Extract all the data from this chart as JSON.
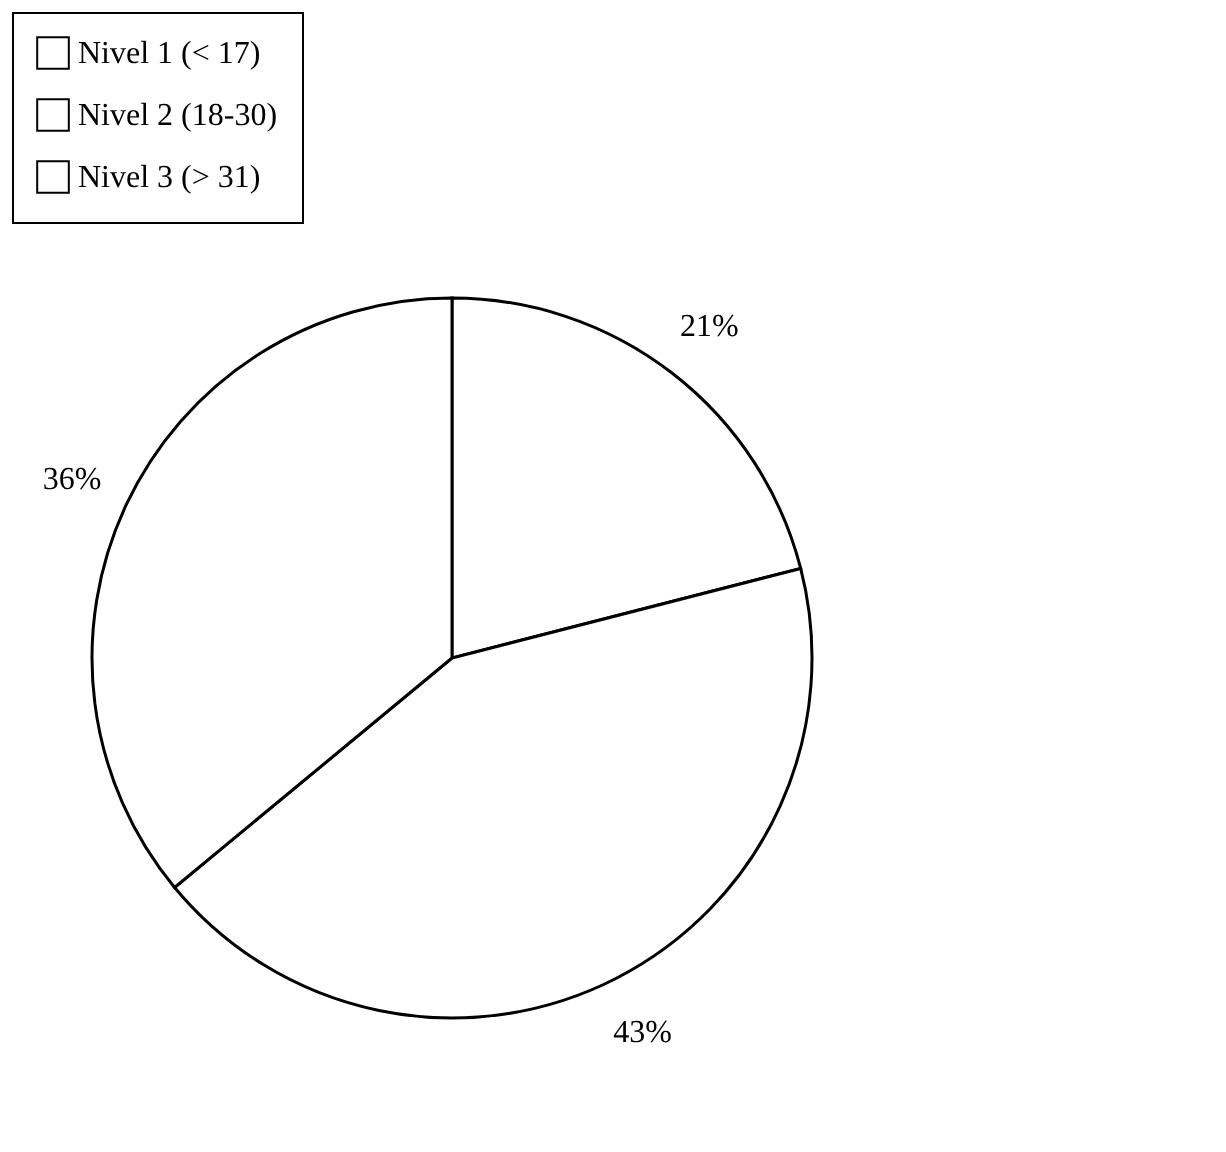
{
  "chart_data": {
    "type": "pie",
    "categories": [
      "Nivel 1 (< 17)",
      "Nivel 2 (18-30)",
      "Nivel 3 (> 31)"
    ],
    "values": [
      21,
      43,
      36
    ],
    "value_labels": [
      "21%",
      "43%",
      "36%"
    ],
    "colors": [
      "#ffffff",
      "#ffffff",
      "#ffffff"
    ],
    "legend": "top"
  }
}
